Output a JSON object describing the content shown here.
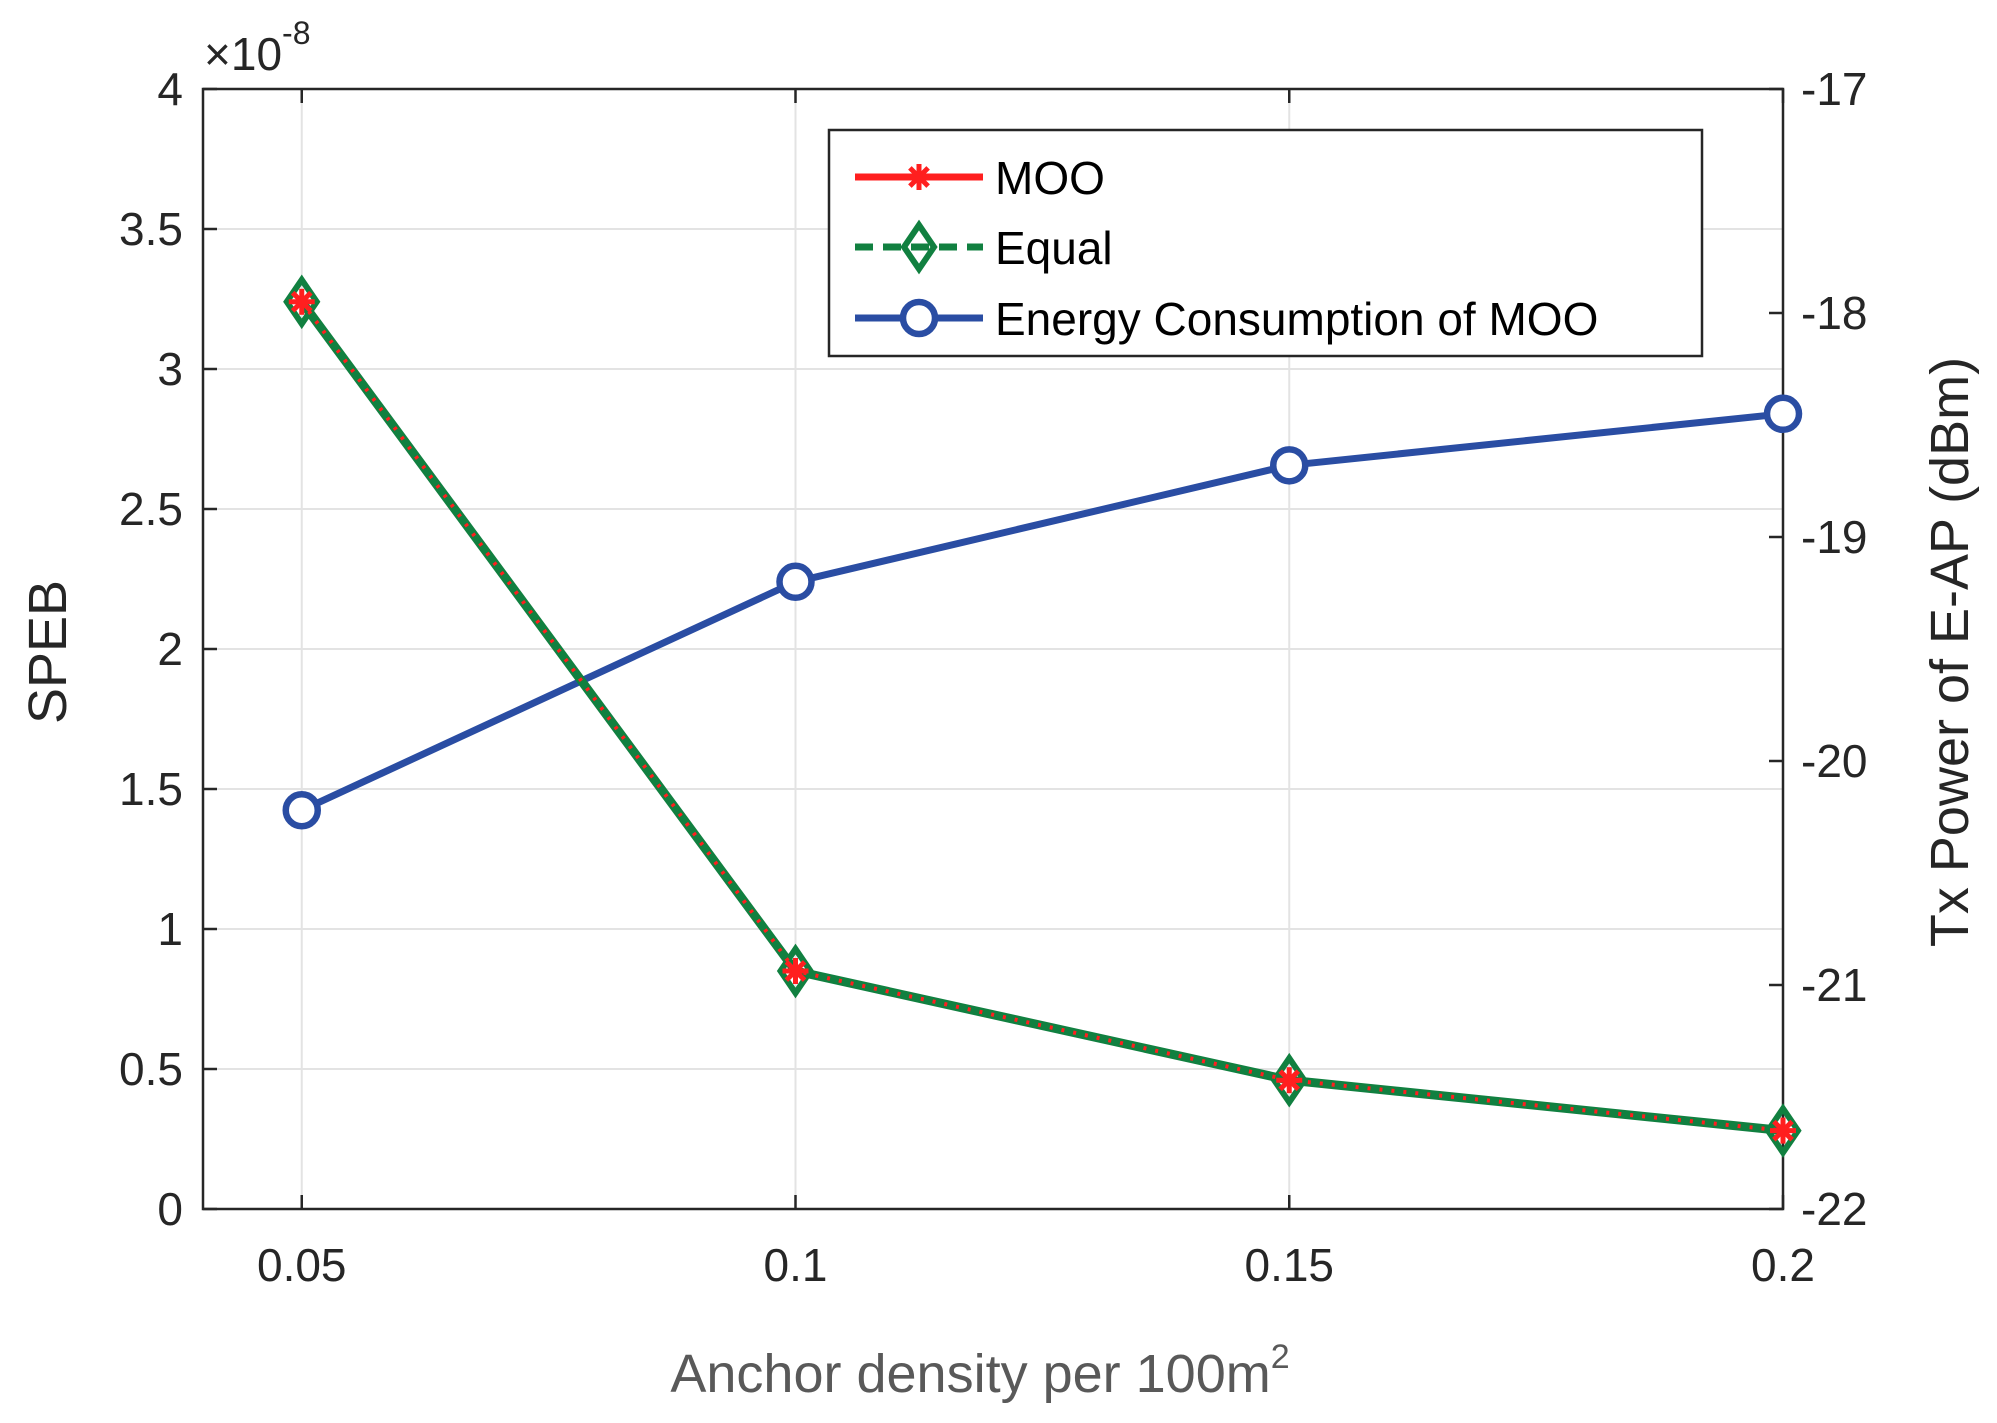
{
  "chart_data": {
    "type": "line",
    "xlabel": "Anchor density per 100m",
    "xlabel_superscript": "2",
    "ylabel_left": "SPEB",
    "ylabel_right": "Tx Power of E-AP (dBm)",
    "left_axis_multiplier": "×10",
    "left_axis_exponent": "-8",
    "x": [
      0.05,
      0.1,
      0.15,
      0.2
    ],
    "xlim": [
      0.04,
      0.2
    ],
    "xticks": [
      "0.05",
      "0.1",
      "0.15",
      "0.2"
    ],
    "ylim_left": [
      0,
      4
    ],
    "yticks_left": [
      "0",
      "0.5",
      "1",
      "1.5",
      "2",
      "2.5",
      "3",
      "3.5",
      "4"
    ],
    "ylim_right": [
      -22,
      -17
    ],
    "yticks_right": [
      "-22",
      "-21",
      "-20",
      "-19",
      "-18",
      "-17"
    ],
    "grid": true,
    "legend_position": "top-right",
    "series": [
      {
        "name": "MOO",
        "axis": "left",
        "values": [
          3.24,
          0.85,
          0.46,
          0.28
        ],
        "color": "#ff1f1f",
        "marker": "asterisk",
        "line": "solid"
      },
      {
        "name": "Equal",
        "axis": "left",
        "values": [
          3.24,
          0.85,
          0.46,
          0.28
        ],
        "color": "#118040",
        "marker": "diamond",
        "line": "dashed"
      },
      {
        "name": "Energy Consumption of MOO",
        "axis": "right",
        "values": [
          -20.22,
          -19.2,
          -18.68,
          -18.45
        ],
        "color": "#2a4da3",
        "marker": "circle",
        "line": "solid"
      }
    ]
  }
}
